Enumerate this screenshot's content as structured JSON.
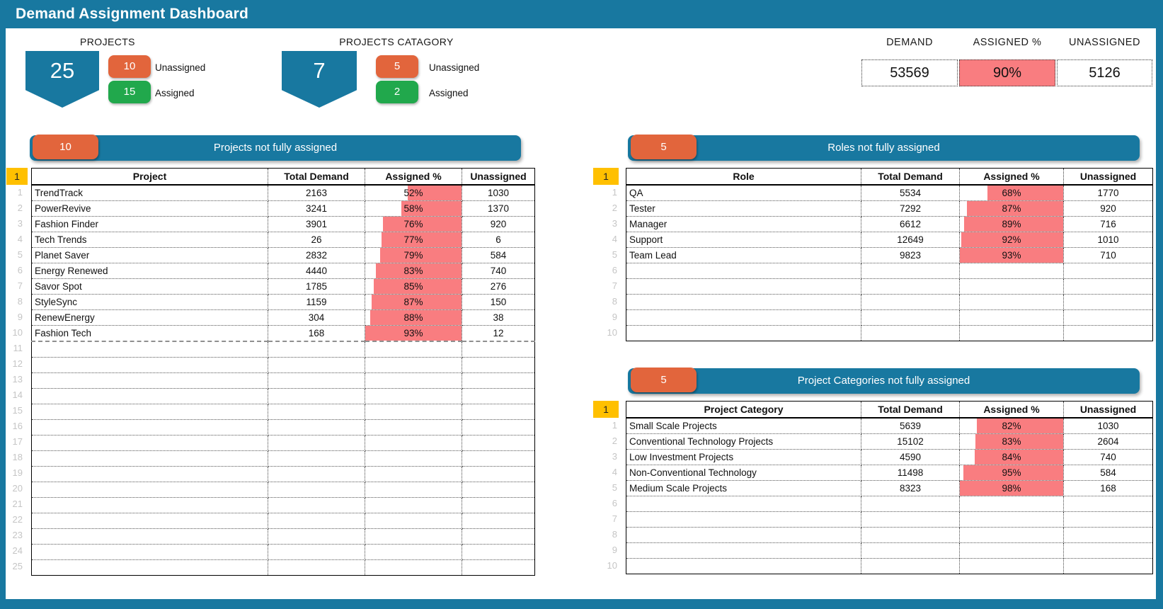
{
  "title": "Demand Assignment Dashboard",
  "colors": {
    "teal": "#1878A0",
    "orange": "#E2653C",
    "green": "#21A84C",
    "pink": "#F97D80",
    "yellow": "#FFC000"
  },
  "summary": {
    "projects": {
      "heading": "PROJECTS",
      "total": "25",
      "unassigned_count": "10",
      "unassigned_label": "Unassigned",
      "assigned_count": "15",
      "assigned_label": "Assigned"
    },
    "project_category": {
      "heading": "PROJECTS CATAGORY",
      "total": "7",
      "unassigned_count": "5",
      "unassigned_label": "Unassigned",
      "assigned_count": "2",
      "assigned_label": "Assigned"
    }
  },
  "kpis": {
    "demand": {
      "label": "DEMAND",
      "value": "53569"
    },
    "assigned_pct": {
      "label": "ASSIGNED %",
      "value": "90%"
    },
    "unassigned": {
      "label": "UNASSIGNED",
      "value": "5126"
    }
  },
  "panels": [
    {
      "id": "projects",
      "badge_count": "10",
      "banner_title": "Projects not fully assigned",
      "corner_label": "1",
      "visible_rows": 25,
      "columns": [
        "Project",
        "Total Demand",
        "Assigned %",
        "Unassigned"
      ],
      "rows": [
        {
          "label": "TrendTrack",
          "total_demand": "2163",
          "assigned_pct": 52,
          "unassigned": "1030"
        },
        {
          "label": "PowerRevive",
          "total_demand": "3241",
          "assigned_pct": 58,
          "unassigned": "1370"
        },
        {
          "label": "Fashion Finder",
          "total_demand": "3901",
          "assigned_pct": 76,
          "unassigned": "920"
        },
        {
          "label": "Tech Trends",
          "total_demand": "26",
          "assigned_pct": 77,
          "unassigned": "6"
        },
        {
          "label": "Planet Saver",
          "total_demand": "2832",
          "assigned_pct": 79,
          "unassigned": "584"
        },
        {
          "label": "Energy Renewed",
          "total_demand": "4440",
          "assigned_pct": 83,
          "unassigned": "740"
        },
        {
          "label": "Savor Spot",
          "total_demand": "1785",
          "assigned_pct": 85,
          "unassigned": "276"
        },
        {
          "label": "StyleSync",
          "total_demand": "1159",
          "assigned_pct": 87,
          "unassigned": "150"
        },
        {
          "label": "RenewEnergy",
          "total_demand": "304",
          "assigned_pct": 88,
          "unassigned": "38"
        },
        {
          "label": "Fashion Tech",
          "total_demand": "168",
          "assigned_pct": 93,
          "unassigned": "12"
        }
      ]
    },
    {
      "id": "roles",
      "badge_count": "5",
      "banner_title": "Roles not fully assigned",
      "corner_label": "1",
      "visible_rows": 10,
      "columns": [
        "Role",
        "Total Demand",
        "Assigned %",
        "Unassigned"
      ],
      "rows": [
        {
          "label": "QA",
          "total_demand": "5534",
          "assigned_pct": 68,
          "unassigned": "1770"
        },
        {
          "label": "Tester",
          "total_demand": "7292",
          "assigned_pct": 87,
          "unassigned": "920"
        },
        {
          "label": "Manager",
          "total_demand": "6612",
          "assigned_pct": 89,
          "unassigned": "716"
        },
        {
          "label": "Support",
          "total_demand": "12649",
          "assigned_pct": 92,
          "unassigned": "1010"
        },
        {
          "label": "Team Lead",
          "total_demand": "9823",
          "assigned_pct": 93,
          "unassigned": "710"
        }
      ]
    },
    {
      "id": "categories",
      "badge_count": "5",
      "banner_title": "Project Categories not fully assigned",
      "corner_label": "1",
      "visible_rows": 10,
      "columns": [
        "Project Category",
        "Total Demand",
        "Assigned %",
        "Unassigned"
      ],
      "rows": [
        {
          "label": "Small Scale Projects",
          "total_demand": "5639",
          "assigned_pct": 82,
          "unassigned": "1030"
        },
        {
          "label": "Conventional Technology Projects",
          "total_demand": "15102",
          "assigned_pct": 83,
          "unassigned": "2604"
        },
        {
          "label": "Low Investment Projects",
          "total_demand": "4590",
          "assigned_pct": 84,
          "unassigned": "740"
        },
        {
          "label": "Non-Conventional Technology",
          "total_demand": "11498",
          "assigned_pct": 95,
          "unassigned": "584"
        },
        {
          "label": "Medium Scale Projects",
          "total_demand": "8323",
          "assigned_pct": 98,
          "unassigned": "168"
        }
      ]
    }
  ]
}
